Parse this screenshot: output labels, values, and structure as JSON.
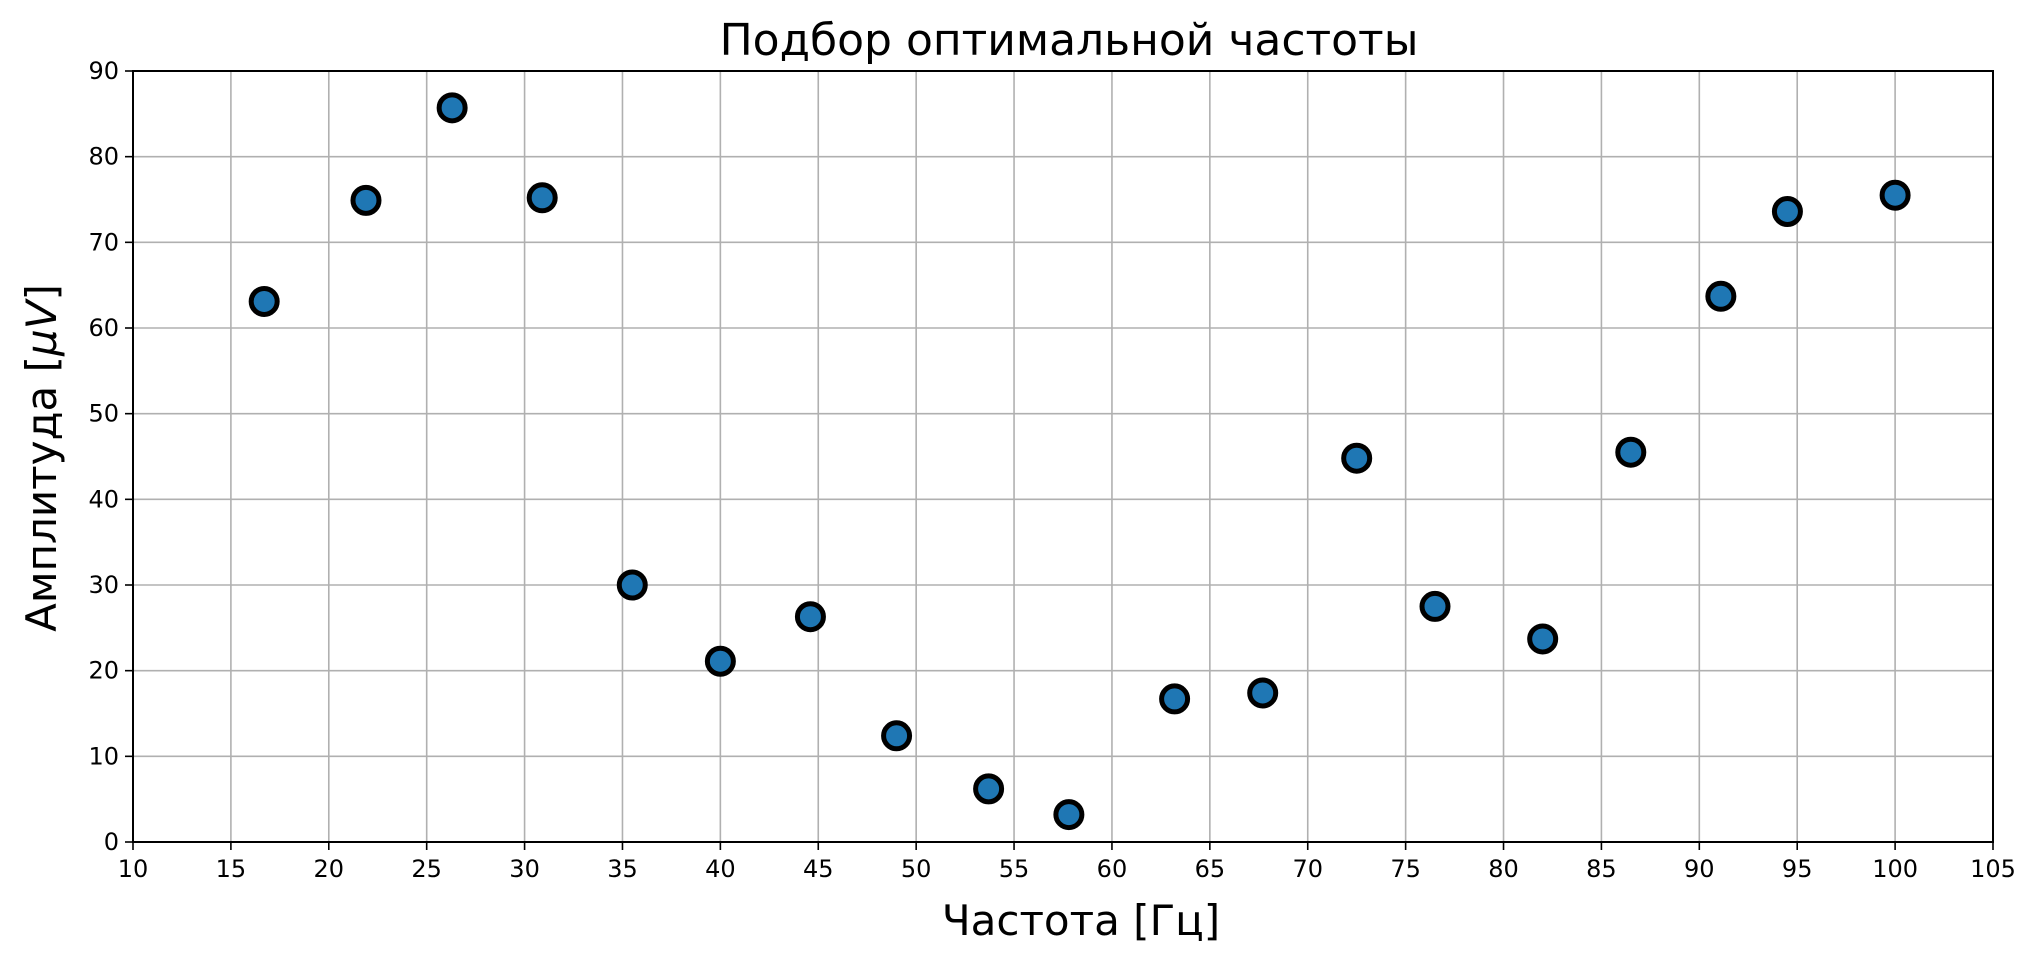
{
  "chart_data": {
    "type": "scatter",
    "title": "Подбор оптимальной частоты",
    "xlabel": "Частота [Гц]",
    "ylabel_prefix": "Амплитуда [",
    "ylabel_unit": "μV",
    "ylabel_suffix": "]",
    "xlim": [
      10,
      105
    ],
    "ylim": [
      0,
      90
    ],
    "x_ticks": [
      10,
      15,
      20,
      25,
      30,
      35,
      40,
      45,
      50,
      55,
      60,
      65,
      70,
      75,
      80,
      85,
      90,
      95,
      100,
      105
    ],
    "y_ticks": [
      0,
      10,
      20,
      30,
      40,
      50,
      60,
      70,
      80,
      90
    ],
    "grid": true,
    "legend": "none",
    "marker_fill": "#1f77b4",
    "marker_edge": "#000000",
    "grid_color": "#b0b0b0",
    "series": [
      {
        "x": [
          16.7,
          21.9,
          26.3,
          30.9,
          35.5,
          40.0,
          44.6,
          49.0,
          53.7,
          57.8,
          63.2,
          67.7,
          72.5,
          76.5,
          82.0,
          86.5,
          91.1,
          94.5,
          100.0
        ],
        "y": [
          63.1,
          74.9,
          85.7,
          75.2,
          30.0,
          21.1,
          26.3,
          12.4,
          6.2,
          3.2,
          16.7,
          17.4,
          44.8,
          27.5,
          23.7,
          45.5,
          63.7,
          73.6,
          75.5
        ]
      }
    ]
  }
}
